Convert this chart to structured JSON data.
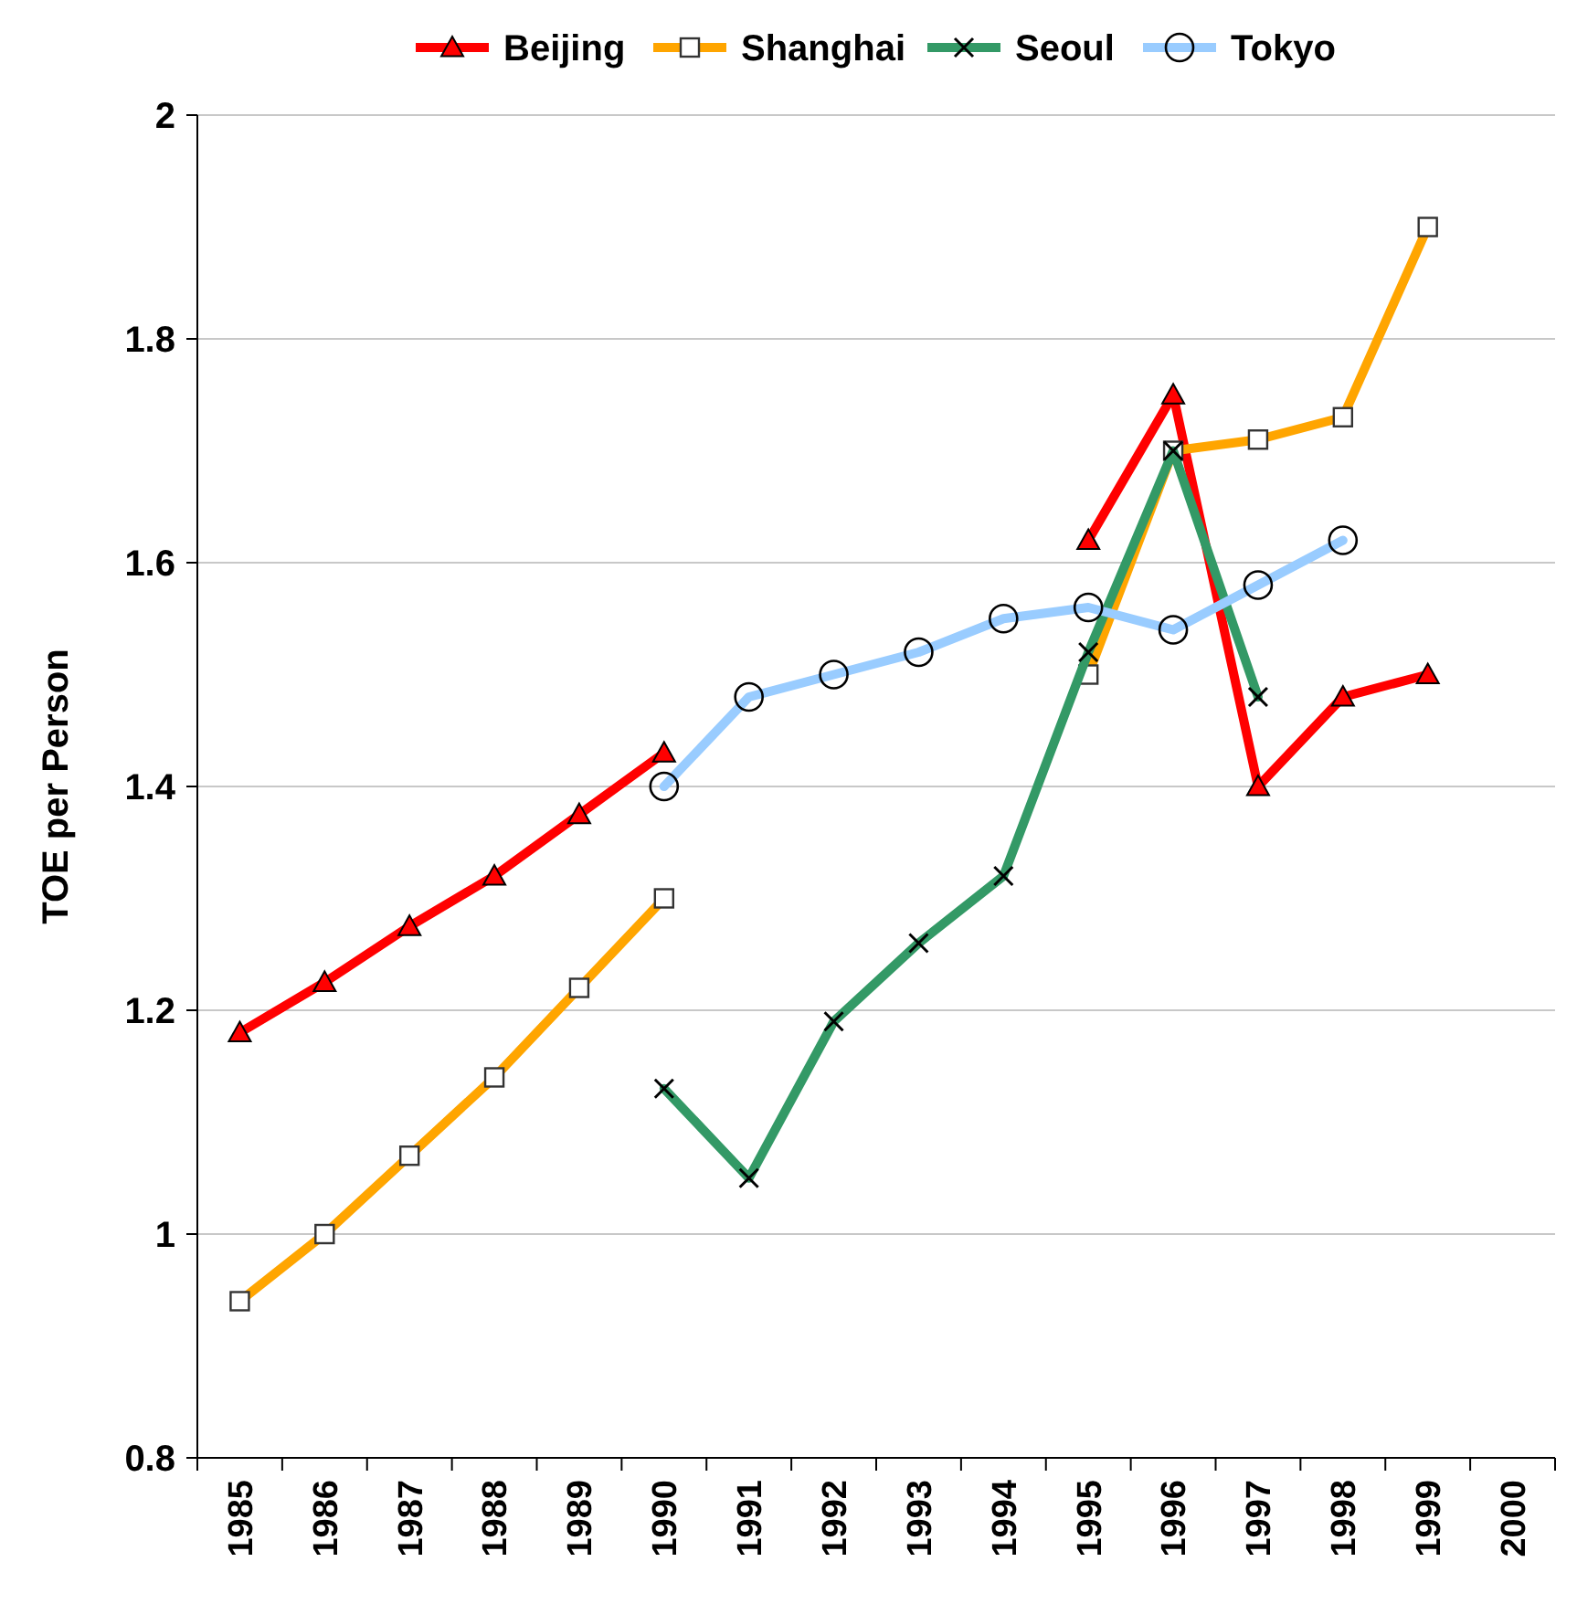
{
  "chart_data": {
    "type": "line",
    "ylabel": "TOE per Person",
    "categories": [
      "1985",
      "1986",
      "1987",
      "1988",
      "1989",
      "1990",
      "1991",
      "1992",
      "1993",
      "1994",
      "1995",
      "1996",
      "1997",
      "1998",
      "1999",
      "2000"
    ],
    "series": [
      {
        "name": "Beijing",
        "color": "#ff0000",
        "marker": "triangle",
        "values": [
          1.18,
          1.225,
          1.275,
          1.32,
          1.375,
          1.43,
          null,
          null,
          null,
          null,
          1.62,
          1.75,
          1.4,
          1.48,
          1.5,
          null
        ]
      },
      {
        "name": "Shanghai",
        "color": "#ffa500",
        "marker": "square",
        "values": [
          0.94,
          1.0,
          1.07,
          1.14,
          1.22,
          1.3,
          null,
          null,
          null,
          null,
          1.5,
          1.7,
          1.71,
          1.73,
          1.9,
          null
        ]
      },
      {
        "name": "Seoul",
        "color": "#339966",
        "marker": "cross",
        "values": [
          null,
          null,
          null,
          null,
          null,
          1.13,
          1.05,
          1.19,
          1.26,
          1.32,
          1.52,
          1.7,
          1.48,
          null,
          null,
          null
        ]
      },
      {
        "name": "Tokyo",
        "color": "#99ccff",
        "marker": "circle",
        "values": [
          null,
          null,
          null,
          null,
          null,
          1.4,
          1.48,
          1.5,
          1.52,
          1.55,
          1.56,
          1.54,
          1.58,
          1.62,
          null,
          null
        ]
      }
    ],
    "ylim": [
      0.8,
      2
    ],
    "yticks": [
      0.8,
      1,
      1.2,
      1.4,
      1.6,
      1.8,
      2
    ],
    "grid": "y",
    "legend": "top",
    "line_style": "solid"
  }
}
